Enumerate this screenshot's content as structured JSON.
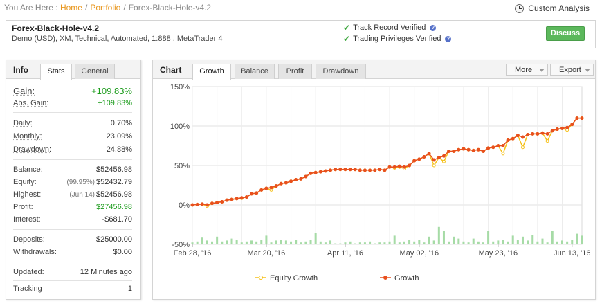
{
  "breadcrumb": {
    "prefix": "You Are Here :",
    "home": "Home",
    "portfolio": "Portfolio",
    "current": "Forex-Black-Hole-v4.2",
    "sep": "/"
  },
  "custom_analysis": "Custom Analysis",
  "account": {
    "name": "Forex-Black-Hole-v4.2",
    "desc_before": "Demo (USD),",
    "broker": "XM",
    "desc_after": ", Technical, Automated, 1:888 , MetaTrader 4",
    "track_record": "Track Record Verified",
    "trading_privileges": "Trading Privileges Verified",
    "discuss": "Discuss"
  },
  "info": {
    "title": "Info",
    "tabs": [
      "Stats",
      "General"
    ],
    "gain_label": "Gain:",
    "gain_value": "+109.83%",
    "abs_gain_label": "Abs. Gain:",
    "abs_gain_value": "+109.83%",
    "daily_label": "Daily:",
    "daily_value": "0.70%",
    "monthly_label": "Monthly:",
    "monthly_value": "23.09%",
    "drawdown_label": "Drawdown:",
    "drawdown_value": "24.88%",
    "balance_label": "Balance:",
    "balance_value": "$52456.98",
    "equity_label": "Equity:",
    "equity_note": "(99.95%)",
    "equity_value": "$52432.79",
    "highest_label": "Highest:",
    "highest_note": "(Jun 14)",
    "highest_value": "$52456.98",
    "profit_label": "Profit:",
    "profit_value": "$27456.98",
    "interest_label": "Interest:",
    "interest_value": "-$681.70",
    "deposits_label": "Deposits:",
    "deposits_value": "$25000.00",
    "withdrawals_label": "Withdrawals:",
    "withdrawals_value": "$0.00",
    "updated_label": "Updated:",
    "updated_value": "12 Minutes ago",
    "tracking_label": "Tracking",
    "tracking_value": "1"
  },
  "chart_panel": {
    "title": "Chart",
    "tabs": [
      "Growth",
      "Balance",
      "Profit",
      "Drawdown"
    ],
    "more": "More",
    "export": "Export"
  },
  "colors": {
    "equity": "#f5c018",
    "growth": "#e8501e",
    "bars": "#a6dba6",
    "green": "#1a9b1a",
    "orange_link": "#e8961d"
  },
  "chart_data": {
    "type": "line",
    "ylim": [
      -50,
      150
    ],
    "yticks": [
      "150%",
      "100%",
      "50%",
      "0%",
      "-50%"
    ],
    "x_tick_labels": [
      "Feb 28, '16",
      "Mar 20, '16",
      "Apr 11, '16",
      "May 02, '16",
      "May 23, '16",
      "Jun 13, '16"
    ],
    "x_tick_index": [
      0,
      15,
      31,
      46,
      62,
      77
    ],
    "series": [
      {
        "name": "Equity Growth",
        "values": [
          0,
          0.5,
          1,
          -1.5,
          2,
          3,
          4,
          6,
          7,
          8,
          8.5,
          10,
          14,
          15,
          19,
          21,
          19,
          24,
          27,
          28,
          30,
          32,
          33,
          36,
          40,
          41,
          42,
          43,
          44,
          45,
          45,
          45,
          45,
          45,
          44,
          44,
          44,
          44,
          45,
          44,
          48,
          47,
          48,
          46,
          50,
          56,
          58,
          61,
          65,
          50,
          60,
          55,
          68,
          68,
          70,
          71,
          70,
          69,
          70,
          68,
          72,
          73,
          75,
          65,
          82,
          84,
          88,
          73,
          89,
          90,
          90,
          91,
          81,
          94,
          96,
          97,
          95,
          102,
          110,
          110
        ]
      },
      {
        "name": "Growth",
        "values": [
          0,
          0.5,
          1,
          0,
          2,
          3,
          4,
          6,
          7,
          8,
          9,
          10,
          14,
          15,
          19,
          21,
          22,
          24,
          27,
          28,
          30,
          32,
          33,
          36,
          40,
          41,
          42,
          43,
          44,
          45,
          45,
          45,
          45,
          45,
          44,
          44,
          44,
          44,
          45,
          44,
          48,
          48,
          49,
          48,
          50,
          56,
          58,
          61,
          65,
          57,
          60,
          62,
          68,
          68,
          70,
          71,
          70,
          69,
          70,
          68,
          72,
          73,
          75,
          75,
          82,
          84,
          88,
          86,
          89,
          90,
          90,
          91,
          90,
          94,
          96,
          97,
          98,
          102,
          110,
          110
        ]
      },
      {
        "name": "Volume",
        "values": [
          2,
          3,
          7,
          4,
          3,
          8,
          3,
          4,
          6,
          5,
          2,
          3,
          4,
          3,
          5,
          9,
          2,
          4,
          5,
          4,
          3,
          5,
          2,
          3,
          5,
          12,
          3,
          2,
          4,
          1,
          1,
          2,
          3,
          1,
          2,
          2,
          3,
          1,
          2,
          2,
          3,
          9,
          2,
          3,
          5,
          3,
          5,
          2,
          8,
          4,
          18,
          14,
          3,
          8,
          6,
          3,
          2,
          6,
          3,
          2,
          14,
          3,
          4,
          5,
          3,
          9,
          5,
          8,
          4,
          10,
          3,
          6,
          2,
          14,
          3,
          4,
          3,
          5,
          11,
          9
        ]
      }
    ],
    "legend": [
      {
        "label": "Equity Growth",
        "series": "equity"
      },
      {
        "label": "Growth",
        "series": "growth"
      }
    ]
  }
}
